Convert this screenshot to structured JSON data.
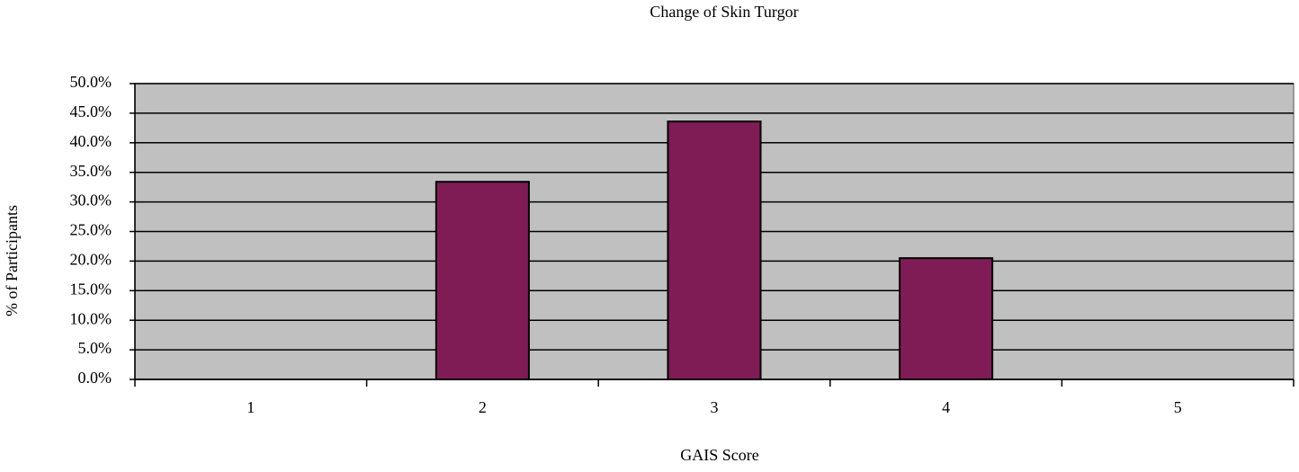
{
  "chart_data": {
    "type": "bar",
    "title": "Change of Skin Turgor",
    "x_label": "GAIS Score",
    "y_label": "% of Participants",
    "categories": [
      "1",
      "2",
      "3",
      "4",
      "5"
    ],
    "values": [
      0,
      33.4,
      43.6,
      20.5,
      0
    ],
    "color": "#7f1c56",
    "plot_background": "#c0c0c0",
    "ylim": [
      0,
      50
    ],
    "yticks": [
      {
        "value": 0,
        "label": "0.0%"
      },
      {
        "value": 5,
        "label": "5.0%"
      },
      {
        "value": 10,
        "label": "10.0%"
      },
      {
        "value": 15,
        "label": "15.0%"
      },
      {
        "value": 20,
        "label": "20.0%"
      },
      {
        "value": 25,
        "label": "25.0%"
      },
      {
        "value": 30,
        "label": "30.0%"
      },
      {
        "value": 35,
        "label": "35.0%"
      },
      {
        "value": 40,
        "label": "40.0%"
      },
      {
        "value": 45,
        "label": "45.0%"
      },
      {
        "value": 50,
        "label": "50.0%"
      }
    ],
    "grid": true
  }
}
